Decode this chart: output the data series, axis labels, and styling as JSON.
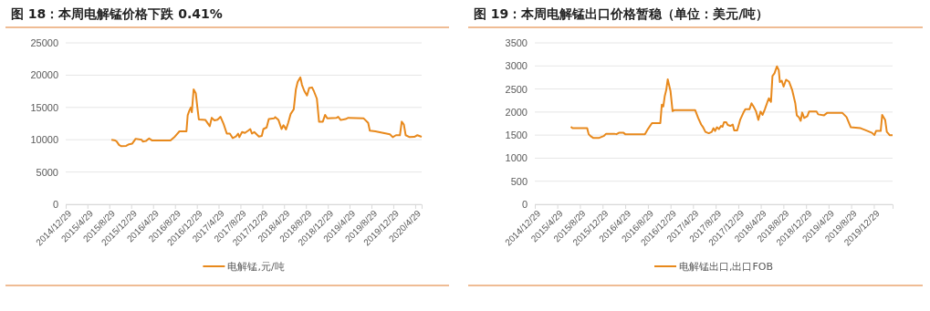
{
  "chart_data": [
    {
      "type": "line",
      "title": "图 18：本周电解锰价格下跌 0.41%",
      "xlim": [
        "2014-12-29",
        "2020-06-04"
      ],
      "ylim": [
        0,
        25000
      ],
      "yticks": [
        0,
        5000,
        10000,
        15000,
        20000,
        25000
      ],
      "xticks": [
        {
          "value": "2014-12-29",
          "label": "2014/12/29"
        },
        {
          "value": "2015-04-29",
          "label": "2015/4/29"
        },
        {
          "value": "2015-08-29",
          "label": "2015/8/29"
        },
        {
          "value": "2015-12-29",
          "label": "2015/12/29"
        },
        {
          "value": "2016-04-29",
          "label": "2016/4/29"
        },
        {
          "value": "2016-08-29",
          "label": "2016/8/29"
        },
        {
          "value": "2016-12-29",
          "label": "2016/12/29"
        },
        {
          "value": "2017-04-29",
          "label": "2017/4/29"
        },
        {
          "value": "2017-08-29",
          "label": "2017/8/29"
        },
        {
          "value": "2017-12-29",
          "label": "2017/12/29"
        },
        {
          "value": "2018-04-29",
          "label": "2018/4/29"
        },
        {
          "value": "2018-08-29",
          "label": "2018/8/29"
        },
        {
          "value": "2018-12-29",
          "label": "2018/12/29"
        },
        {
          "value": "2019-04-29",
          "label": "2019/4/29"
        },
        {
          "value": "2019-08-29",
          "label": "2019/8/29"
        },
        {
          "value": "2019-12-29",
          "label": "2019/12/29"
        },
        {
          "value": "2020-04-29",
          "label": "2020/4/29"
        }
      ],
      "grid": "y",
      "legend": "bottom",
      "marker": "none",
      "series": [
        {
          "name": "电解锰,元/吨",
          "color": "#e8891c",
          "x": [
            "2015-09-10",
            "2015-10-01",
            "2015-10-10",
            "2015-10-22",
            "2015-11-04",
            "2015-12-01",
            "2015-12-17",
            "2016-01-04",
            "2016-01-23",
            "2016-02-25",
            "2016-03-03",
            "2016-03-20",
            "2016-04-07",
            "2016-04-22",
            "2016-08-04",
            "2016-08-29",
            "2016-09-23",
            "2016-11-01",
            "2016-11-08",
            "2016-11-17",
            "2016-11-26",
            "2016-12-01",
            "2016-12-11",
            "2016-12-23",
            "2016-12-31",
            "2017-01-09",
            "2017-02-15",
            "2017-03-11",
            "2017-03-22",
            "2017-04-06",
            "2017-04-23",
            "2017-05-10",
            "2017-05-27",
            "2017-06-14",
            "2017-07-01",
            "2017-07-17",
            "2017-08-04",
            "2017-08-16",
            "2017-08-23",
            "2017-09-07",
            "2017-09-23",
            "2017-10-11",
            "2017-10-23",
            "2017-11-01",
            "2017-11-14",
            "2017-12-10",
            "2017-12-26",
            "2018-01-04",
            "2018-01-22",
            "2018-02-03",
            "2018-03-04",
            "2018-03-11",
            "2018-03-29",
            "2018-04-15",
            "2018-04-26",
            "2018-05-10",
            "2018-05-22",
            "2018-06-05",
            "2018-06-22",
            "2018-07-04",
            "2018-07-14",
            "2018-07-29",
            "2018-08-07",
            "2018-08-20",
            "2018-09-04",
            "2018-09-16",
            "2018-10-02",
            "2018-10-12",
            "2018-10-29",
            "2018-11-10",
            "2018-12-01",
            "2018-12-14",
            "2018-12-26",
            "2019-02-16",
            "2019-02-25",
            "2019-03-11",
            "2019-04-07",
            "2019-04-22",
            "2019-07-17",
            "2019-08-11",
            "2019-08-20",
            "2019-09-20",
            "2019-12-10",
            "2019-12-26",
            "2020-01-13",
            "2020-02-04",
            "2020-02-14",
            "2020-02-26",
            "2020-03-07",
            "2020-03-29",
            "2020-04-24",
            "2020-05-11",
            "2020-06-04"
          ],
          "values": [
            10000,
            9900,
            9700,
            9200,
            9000,
            9050,
            9300,
            9400,
            10150,
            10000,
            9700,
            9800,
            10200,
            9900,
            9900,
            10500,
            11300,
            11300,
            13800,
            14500,
            15000,
            14250,
            17800,
            17200,
            15200,
            13150,
            13050,
            12100,
            13400,
            13000,
            13100,
            13550,
            12450,
            10950,
            10950,
            10250,
            10500,
            10950,
            10400,
            11200,
            11050,
            11400,
            11650,
            10950,
            11200,
            10500,
            10600,
            11650,
            11900,
            13200,
            13300,
            13500,
            13050,
            11650,
            12250,
            11600,
            12600,
            14000,
            14700,
            17800,
            18950,
            19650,
            18500,
            17550,
            16850,
            18000,
            18100,
            17550,
            16350,
            12800,
            12800,
            13850,
            13300,
            13400,
            13550,
            13050,
            13200,
            13400,
            13300,
            12600,
            11400,
            11300,
            10850,
            10400,
            10700,
            10700,
            12800,
            12350,
            10700,
            10400,
            10450,
            10700,
            10450
          ]
        }
      ]
    },
    {
      "type": "line",
      "title": "图 19：本周电解锰出口价格暂稳（单位：美元/吨）",
      "xlim": [
        "2014-12-29",
        "2020-04-08"
      ],
      "ylim": [
        0,
        3500
      ],
      "yticks": [
        0,
        500,
        1000,
        1500,
        2000,
        2500,
        3000,
        3500
      ],
      "xticks": [
        {
          "value": "2014-12-29",
          "label": "2014/12/29"
        },
        {
          "value": "2015-04-29",
          "label": "2015/4/29"
        },
        {
          "value": "2015-08-29",
          "label": "2015/8/29"
        },
        {
          "value": "2015-12-29",
          "label": "2015/12/29"
        },
        {
          "value": "2016-04-29",
          "label": "2016/4/29"
        },
        {
          "value": "2016-08-29",
          "label": "2016/8/29"
        },
        {
          "value": "2016-12-29",
          "label": "2016/12/29"
        },
        {
          "value": "2017-04-29",
          "label": "2017/4/29"
        },
        {
          "value": "2017-08-29",
          "label": "2017/8/29"
        },
        {
          "value": "2017-12-29",
          "label": "2017/12/29"
        },
        {
          "value": "2018-04-29",
          "label": "2018/4/29"
        },
        {
          "value": "2018-08-29",
          "label": "2018/8/29"
        },
        {
          "value": "2018-12-29",
          "label": "2018/12/29"
        },
        {
          "value": "2019-04-29",
          "label": "2019/4/29"
        },
        {
          "value": "2019-08-29",
          "label": "2019/8/29"
        },
        {
          "value": "2019-12-29",
          "label": "2019/12/29"
        }
      ],
      "grid": "y",
      "legend": "bottom",
      "marker": "none",
      "series": [
        {
          "name": "电解锰出口,出口FOB",
          "color": "#e8891c",
          "x": [
            "2015-07-11",
            "2015-07-20",
            "2015-10-07",
            "2015-10-15",
            "2015-10-28",
            "2015-11-08",
            "2015-12-11",
            "2016-01-04",
            "2016-01-17",
            "2016-03-01",
            "2016-03-13",
            "2016-03-26",
            "2016-04-20",
            "2016-04-29",
            "2016-08-13",
            "2016-08-29",
            "2016-09-20",
            "2016-10-17",
            "2016-11-04",
            "2016-11-12",
            "2016-11-20",
            "2016-11-28",
            "2016-12-06",
            "2016-12-14",
            "2016-12-29",
            "2017-01-09",
            "2017-01-17",
            "2017-02-19",
            "2017-05-11",
            "2017-05-27",
            "2017-06-12",
            "2017-06-21",
            "2017-07-05",
            "2017-07-23",
            "2017-08-08",
            "2017-08-17",
            "2017-08-26",
            "2017-09-05",
            "2017-09-16",
            "2017-09-27",
            "2017-10-05",
            "2017-10-13",
            "2017-10-25",
            "2017-11-02",
            "2017-11-16",
            "2017-11-29",
            "2017-12-07",
            "2017-12-23",
            "2018-01-08",
            "2018-01-26",
            "2018-02-05",
            "2018-02-27",
            "2018-03-10",
            "2018-03-21",
            "2018-04-03",
            "2018-04-16",
            "2018-04-28",
            "2018-05-09",
            "2018-05-21",
            "2018-06-04",
            "2018-06-12",
            "2018-06-23",
            "2018-07-01",
            "2018-07-12",
            "2018-07-25",
            "2018-08-04",
            "2018-08-10",
            "2018-08-20",
            "2018-08-30",
            "2018-09-12",
            "2018-09-28",
            "2018-10-15",
            "2018-11-01",
            "2018-11-09",
            "2018-11-20",
            "2018-11-30",
            "2018-12-08",
            "2018-12-19",
            "2019-01-05",
            "2019-01-14",
            "2019-02-24",
            "2019-03-04",
            "2019-04-05",
            "2019-04-21",
            "2019-07-13",
            "2019-08-04",
            "2019-08-27",
            "2019-10-19",
            "2019-11-13",
            "2019-12-19",
            "2020-01-01",
            "2020-01-10",
            "2020-02-04",
            "2020-02-12",
            "2020-02-28",
            "2020-03-08",
            "2020-03-15",
            "2020-03-23",
            "2020-04-08"
          ],
          "values": [
            1680,
            1650,
            1650,
            1520,
            1470,
            1440,
            1440,
            1480,
            1530,
            1530,
            1520,
            1550,
            1550,
            1520,
            1520,
            1630,
            1760,
            1760,
            1760,
            2160,
            2120,
            2350,
            2480,
            2710,
            2450,
            2020,
            2040,
            2040,
            2040,
            1870,
            1730,
            1680,
            1570,
            1540,
            1570,
            1650,
            1590,
            1670,
            1630,
            1700,
            1680,
            1780,
            1780,
            1720,
            1700,
            1730,
            1600,
            1600,
            1830,
            1990,
            2060,
            2060,
            2190,
            2120,
            2020,
            1830,
            2010,
            1940,
            2060,
            2220,
            2300,
            2220,
            2780,
            2840,
            2990,
            2910,
            2650,
            2680,
            2550,
            2700,
            2660,
            2480,
            2190,
            1930,
            1890,
            1810,
            1990,
            1870,
            1910,
            2010,
            2010,
            1950,
            1930,
            1980,
            1980,
            1890,
            1670,
            1650,
            1610,
            1550,
            1500,
            1590,
            1590,
            1940,
            1830,
            1570,
            1540,
            1500,
            1500
          ]
        }
      ]
    }
  ]
}
